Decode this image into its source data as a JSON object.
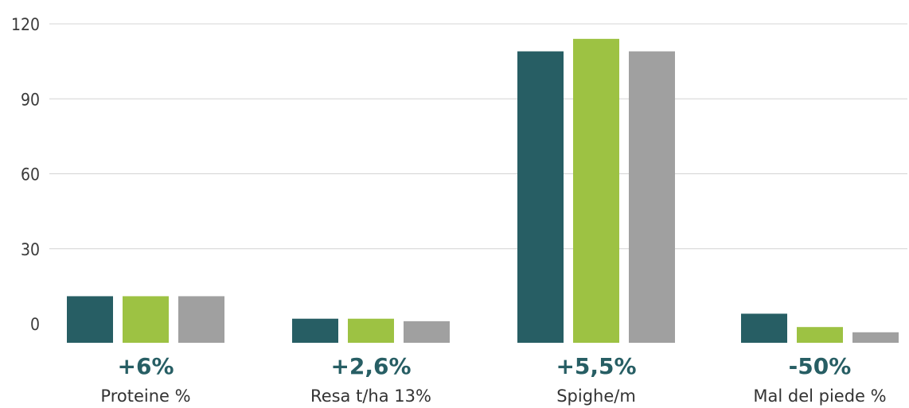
{
  "chart_data": {
    "type": "bar",
    "categories": [
      "Proteine %",
      "Resa t/ha 13%",
      "Spighe/m",
      "Mal del piede %"
    ],
    "category_changes": [
      "+6%",
      "+2,6%",
      "+5,5%",
      "-50%"
    ],
    "series": [
      {
        "values": [
          11,
          2,
          109,
          4
        ]
      },
      {
        "values": [
          11,
          2,
          114,
          -1
        ]
      },
      {
        "values": [
          11,
          1,
          109,
          -4
        ]
      }
    ],
    "series_colors": [
      "#275e64",
      "#9dc243",
      "#a0a0a0"
    ],
    "change_color": "#275e64",
    "yticks": [
      "120",
      "90",
      "60",
      "30",
      "0"
    ],
    "ylim": [
      -8,
      120
    ],
    "grid": true,
    "legend": "none",
    "title": "",
    "xlabel": "",
    "ylabel": ""
  }
}
